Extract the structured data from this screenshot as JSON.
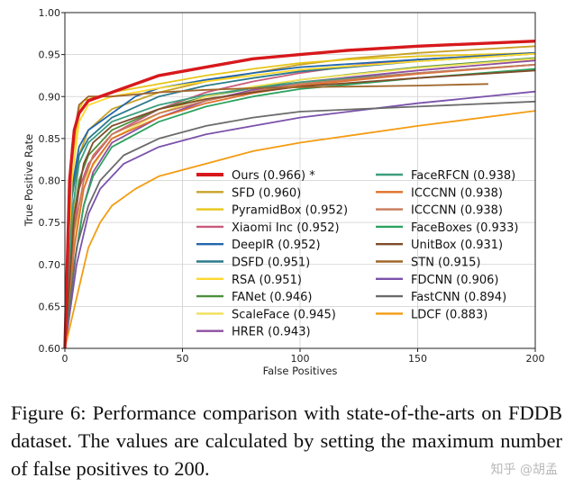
{
  "chart_data": {
    "type": "line",
    "title": "",
    "xlabel": "False Positives",
    "ylabel": "True Positive Rate",
    "xlim": [
      0,
      200
    ],
    "ylim": [
      0.6,
      1.0
    ],
    "xticks": [
      0,
      50,
      100,
      150,
      200
    ],
    "yticks": [
      0.6,
      0.65,
      0.7,
      0.75,
      0.8,
      0.85,
      0.9,
      0.95,
      1.0
    ],
    "xtick_labels": [
      "0",
      "50",
      "100",
      "150",
      "200"
    ],
    "ytick_labels": [
      "0.60",
      "0.65",
      "0.70",
      "0.75",
      "0.80",
      "0.85",
      "0.90",
      "0.95",
      "1.00"
    ],
    "legend_location": "lower-right",
    "series": [
      {
        "name": "Ours (0.966) *",
        "color": "#d7191c",
        "bold": true,
        "points": [
          [
            0,
            0.6
          ],
          [
            2,
            0.8
          ],
          [
            4,
            0.86
          ],
          [
            6,
            0.88
          ],
          [
            10,
            0.895
          ],
          [
            20,
            0.905
          ],
          [
            40,
            0.925
          ],
          [
            60,
            0.935
          ],
          [
            80,
            0.945
          ],
          [
            100,
            0.95
          ],
          [
            120,
            0.955
          ],
          [
            150,
            0.96
          ],
          [
            200,
            0.966
          ]
        ]
      },
      {
        "name": "SFD (0.960)",
        "color": "#c8a227",
        "points": [
          [
            0,
            0.6
          ],
          [
            3,
            0.75
          ],
          [
            6,
            0.83
          ],
          [
            10,
            0.86
          ],
          [
            20,
            0.885
          ],
          [
            40,
            0.905
          ],
          [
            60,
            0.918
          ],
          [
            80,
            0.928
          ],
          [
            100,
            0.938
          ],
          [
            120,
            0.945
          ],
          [
            150,
            0.952
          ],
          [
            200,
            0.96
          ]
        ]
      },
      {
        "name": "PyramidBox (0.952)",
        "color": "#e6c619",
        "points": [
          [
            0,
            0.6
          ],
          [
            3,
            0.82
          ],
          [
            6,
            0.885
          ],
          [
            8,
            0.895
          ],
          [
            20,
            0.905
          ],
          [
            40,
            0.915
          ],
          [
            60,
            0.925
          ],
          [
            80,
            0.933
          ],
          [
            100,
            0.94
          ],
          [
            120,
            0.944
          ],
          [
            150,
            0.948
          ],
          [
            200,
            0.952
          ]
        ]
      },
      {
        "name": "Xiaomi Inc (0.952)",
        "color": "#c85a7c",
        "points": [
          [
            0,
            0.6
          ],
          [
            3,
            0.72
          ],
          [
            6,
            0.79
          ],
          [
            10,
            0.82
          ],
          [
            20,
            0.855
          ],
          [
            40,
            0.885
          ],
          [
            60,
            0.905
          ],
          [
            80,
            0.918
          ],
          [
            100,
            0.928
          ],
          [
            120,
            0.936
          ],
          [
            150,
            0.944
          ],
          [
            200,
            0.952
          ]
        ]
      },
      {
        "name": "DeepIR (0.952)",
        "color": "#2166ac",
        "points": [
          [
            0,
            0.6
          ],
          [
            3,
            0.79
          ],
          [
            6,
            0.84
          ],
          [
            10,
            0.86
          ],
          [
            20,
            0.88
          ],
          [
            30,
            0.9
          ],
          [
            40,
            0.91
          ],
          [
            60,
            0.92
          ],
          [
            80,
            0.928
          ],
          [
            100,
            0.935
          ],
          [
            150,
            0.944
          ],
          [
            200,
            0.952
          ]
        ]
      },
      {
        "name": "DSFD (0.951)",
        "color": "#2c7a8c",
        "points": [
          [
            0,
            0.6
          ],
          [
            3,
            0.78
          ],
          [
            6,
            0.83
          ],
          [
            10,
            0.85
          ],
          [
            20,
            0.875
          ],
          [
            40,
            0.9
          ],
          [
            60,
            0.913
          ],
          [
            80,
            0.922
          ],
          [
            100,
            0.93
          ],
          [
            150,
            0.942
          ],
          [
            200,
            0.951
          ]
        ]
      },
      {
        "name": "RSA (0.951)",
        "color": "#ffd92f",
        "points": [
          [
            0,
            0.6
          ],
          [
            3,
            0.8
          ],
          [
            6,
            0.87
          ],
          [
            10,
            0.89
          ],
          [
            20,
            0.9
          ],
          [
            40,
            0.91
          ],
          [
            60,
            0.918
          ],
          [
            80,
            0.925
          ],
          [
            100,
            0.932
          ],
          [
            150,
            0.942
          ],
          [
            200,
            0.951
          ]
        ]
      },
      {
        "name": "FANet (0.946)",
        "color": "#4d8f3f",
        "points": [
          [
            0,
            0.6
          ],
          [
            3,
            0.74
          ],
          [
            6,
            0.8
          ],
          [
            10,
            0.83
          ],
          [
            20,
            0.86
          ],
          [
            40,
            0.885
          ],
          [
            60,
            0.9
          ],
          [
            80,
            0.91
          ],
          [
            100,
            0.92
          ],
          [
            150,
            0.935
          ],
          [
            200,
            0.946
          ]
        ]
      },
      {
        "name": "ScaleFace (0.945)",
        "color": "#f1e05a",
        "points": [
          [
            0,
            0.6
          ],
          [
            3,
            0.7
          ],
          [
            6,
            0.77
          ],
          [
            10,
            0.81
          ],
          [
            20,
            0.85
          ],
          [
            40,
            0.88
          ],
          [
            60,
            0.9
          ],
          [
            80,
            0.912
          ],
          [
            100,
            0.92
          ],
          [
            150,
            0.934
          ],
          [
            200,
            0.945
          ]
        ]
      },
      {
        "name": "HRER (0.943)",
        "color": "#8e4fa0",
        "points": [
          [
            0,
            0.6
          ],
          [
            4,
            0.7
          ],
          [
            8,
            0.77
          ],
          [
            12,
            0.81
          ],
          [
            20,
            0.845
          ],
          [
            40,
            0.875
          ],
          [
            60,
            0.895
          ],
          [
            80,
            0.908
          ],
          [
            100,
            0.917
          ],
          [
            150,
            0.931
          ],
          [
            200,
            0.943
          ]
        ]
      },
      {
        "name": "FaceRFCN (0.938)",
        "color": "#3e9e7e",
        "points": [
          [
            0,
            0.6
          ],
          [
            3,
            0.76
          ],
          [
            6,
            0.82
          ],
          [
            10,
            0.845
          ],
          [
            20,
            0.87
          ],
          [
            40,
            0.89
          ],
          [
            60,
            0.902
          ],
          [
            80,
            0.91
          ],
          [
            100,
            0.917
          ],
          [
            150,
            0.928
          ],
          [
            200,
            0.938
          ]
        ]
      },
      {
        "name": "ICCCNN (0.938)",
        "color": "#e0702a",
        "points": [
          [
            0,
            0.6
          ],
          [
            4,
            0.72
          ],
          [
            8,
            0.79
          ],
          [
            12,
            0.82
          ],
          [
            20,
            0.85
          ],
          [
            40,
            0.875
          ],
          [
            60,
            0.892
          ],
          [
            80,
            0.904
          ],
          [
            100,
            0.913
          ],
          [
            150,
            0.927
          ],
          [
            200,
            0.938
          ]
        ]
      },
      {
        "name": "ICCCNN (0.938)",
        "color": "#c77b5b",
        "points": [
          [
            0,
            0.6
          ],
          [
            4,
            0.74
          ],
          [
            8,
            0.8
          ],
          [
            12,
            0.83
          ],
          [
            20,
            0.855
          ],
          [
            40,
            0.88
          ],
          [
            60,
            0.895
          ],
          [
            80,
            0.906
          ],
          [
            100,
            0.915
          ],
          [
            150,
            0.928
          ],
          [
            200,
            0.938
          ]
        ]
      },
      {
        "name": "FaceBoxes (0.933)",
        "color": "#2ca25f",
        "points": [
          [
            0,
            0.6
          ],
          [
            4,
            0.7
          ],
          [
            8,
            0.77
          ],
          [
            12,
            0.805
          ],
          [
            20,
            0.84
          ],
          [
            40,
            0.87
          ],
          [
            60,
            0.888
          ],
          [
            80,
            0.9
          ],
          [
            100,
            0.909
          ],
          [
            150,
            0.922
          ],
          [
            200,
            0.933
          ]
        ]
      },
      {
        "name": "UnitBox (0.931)",
        "color": "#7f4b2a",
        "points": [
          [
            0,
            0.6
          ],
          [
            4,
            0.76
          ],
          [
            8,
            0.82
          ],
          [
            12,
            0.845
          ],
          [
            20,
            0.865
          ],
          [
            40,
            0.885
          ],
          [
            60,
            0.897
          ],
          [
            80,
            0.905
          ],
          [
            100,
            0.912
          ],
          [
            150,
            0.922
          ],
          [
            200,
            0.931
          ]
        ]
      },
      {
        "name": "STN (0.915)",
        "color": "#a0662a",
        "points": [
          [
            0,
            0.6
          ],
          [
            3,
            0.84
          ],
          [
            6,
            0.89
          ],
          [
            10,
            0.9
          ],
          [
            20,
            0.9
          ],
          [
            40,
            0.905
          ],
          [
            60,
            0.908
          ],
          [
            80,
            0.91
          ],
          [
            100,
            0.911
          ],
          [
            150,
            0.913
          ],
          [
            180,
            0.915
          ]
        ]
      },
      {
        "name": "FDCNN (0.906)",
        "color": "#7b52ab",
        "points": [
          [
            0,
            0.6
          ],
          [
            5,
            0.7
          ],
          [
            10,
            0.76
          ],
          [
            15,
            0.79
          ],
          [
            25,
            0.82
          ],
          [
            40,
            0.84
          ],
          [
            60,
            0.855
          ],
          [
            80,
            0.865
          ],
          [
            100,
            0.875
          ],
          [
            150,
            0.892
          ],
          [
            200,
            0.906
          ]
        ]
      },
      {
        "name": "FastCNN (0.894)",
        "color": "#6b6b6b",
        "points": [
          [
            0,
            0.6
          ],
          [
            5,
            0.72
          ],
          [
            10,
            0.77
          ],
          [
            15,
            0.8
          ],
          [
            25,
            0.83
          ],
          [
            40,
            0.85
          ],
          [
            60,
            0.865
          ],
          [
            80,
            0.875
          ],
          [
            100,
            0.882
          ],
          [
            150,
            0.888
          ],
          [
            200,
            0.894
          ]
        ]
      },
      {
        "name": "LDCF (0.883)",
        "color": "#f39c12",
        "points": [
          [
            0,
            0.6
          ],
          [
            5,
            0.66
          ],
          [
            10,
            0.72
          ],
          [
            15,
            0.75
          ],
          [
            20,
            0.77
          ],
          [
            30,
            0.79
          ],
          [
            40,
            0.805
          ],
          [
            60,
            0.82
          ],
          [
            80,
            0.835
          ],
          [
            100,
            0.845
          ],
          [
            150,
            0.865
          ],
          [
            200,
            0.883
          ]
        ]
      }
    ]
  },
  "caption": "Figure 6: Performance comparison with state-of-the-arts on FDDB dataset.  The values are calculated by setting the maximum number of false positives to 200.",
  "watermark": "知乎 @胡孟"
}
